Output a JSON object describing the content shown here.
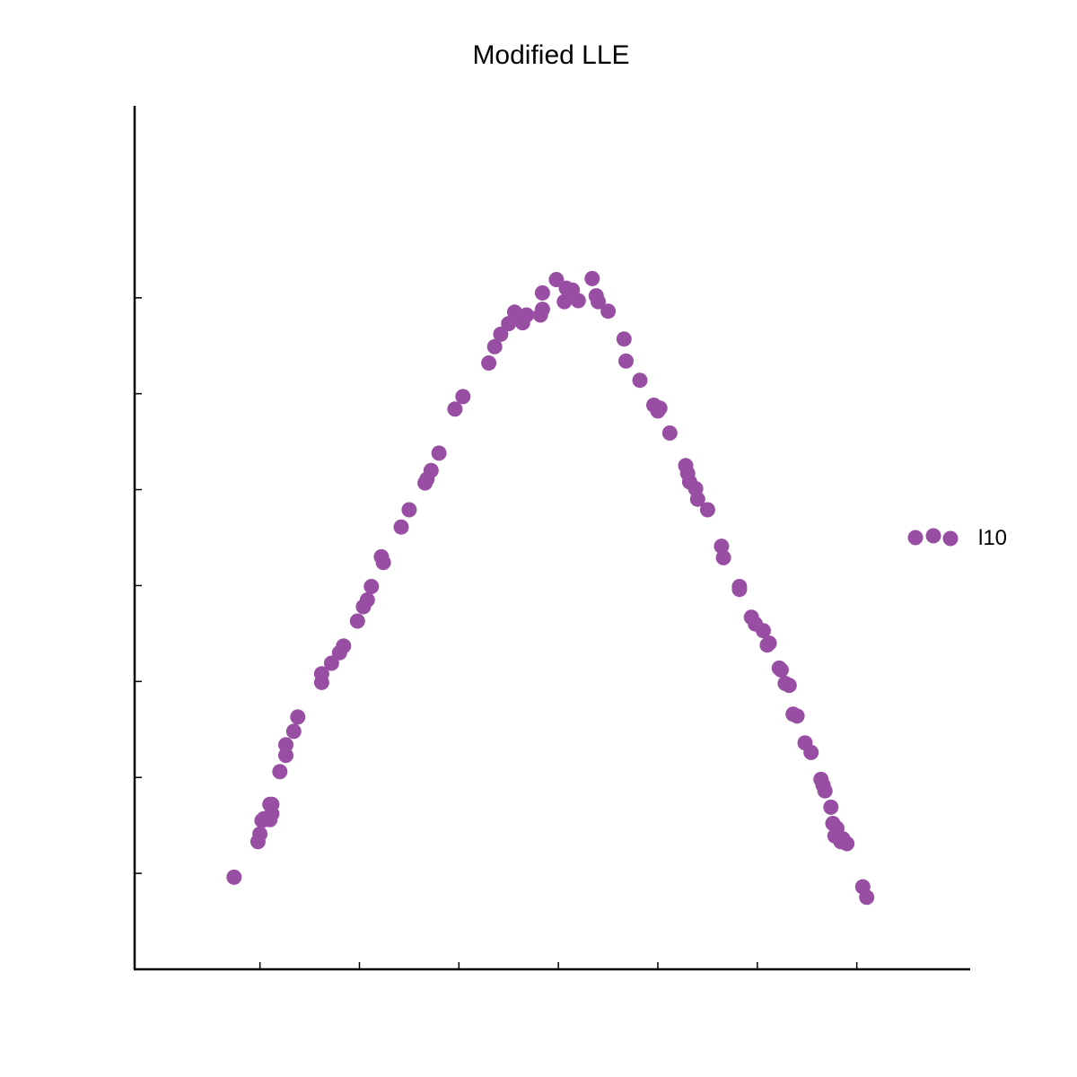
{
  "chart_data": {
    "type": "scatter",
    "title": "Modified LLE",
    "xlabel": "",
    "ylabel": "",
    "xlim": [
      -0.63,
      3.57
    ],
    "ylim": [
      -1.0,
      8.0
    ],
    "xticks": [
      0,
      0.5,
      1.0,
      1.5,
      2.0,
      2.5,
      3.0
    ],
    "yticks": [
      0,
      1,
      2,
      3,
      4,
      5,
      6
    ],
    "tick_labels_visible": false,
    "grid": false,
    "legend_position": "right",
    "series": [
      {
        "name": "l10",
        "color": "#984ea3",
        "points": [
          [
            -0.13,
            -0.04
          ],
          [
            -0.01,
            0.33
          ],
          [
            0.0,
            0.41
          ],
          [
            0.01,
            0.55
          ],
          [
            0.02,
            0.57
          ],
          [
            0.04,
            0.58
          ],
          [
            0.05,
            0.56
          ],
          [
            0.06,
            0.62
          ],
          [
            0.05,
            0.72
          ],
          [
            0.06,
            0.72
          ],
          [
            0.1,
            1.06
          ],
          [
            0.13,
            1.23
          ],
          [
            0.13,
            1.34
          ],
          [
            0.17,
            1.48
          ],
          [
            0.19,
            1.63
          ],
          [
            0.31,
            1.99
          ],
          [
            0.31,
            2.08
          ],
          [
            0.36,
            2.19
          ],
          [
            0.4,
            2.3
          ],
          [
            0.42,
            2.37
          ],
          [
            0.49,
            2.63
          ],
          [
            0.52,
            2.78
          ],
          [
            0.54,
            2.85
          ],
          [
            0.56,
            2.99
          ],
          [
            0.61,
            3.3
          ],
          [
            0.62,
            3.24
          ],
          [
            0.71,
            3.61
          ],
          [
            0.75,
            3.79
          ],
          [
            0.83,
            4.07
          ],
          [
            0.84,
            4.11
          ],
          [
            0.86,
            4.2
          ],
          [
            0.9,
            4.38
          ],
          [
            0.98,
            4.84
          ],
          [
            1.02,
            4.97
          ],
          [
            1.15,
            5.32
          ],
          [
            1.18,
            5.49
          ],
          [
            1.21,
            5.62
          ],
          [
            1.25,
            5.73
          ],
          [
            1.28,
            5.85
          ],
          [
            1.32,
            5.74
          ],
          [
            1.34,
            5.82
          ],
          [
            1.41,
            5.82
          ],
          [
            1.42,
            5.88
          ],
          [
            1.42,
            6.05
          ],
          [
            1.49,
            6.19
          ],
          [
            1.53,
            5.96
          ],
          [
            1.54,
            6.1
          ],
          [
            1.57,
            6.08
          ],
          [
            1.6,
            5.97
          ],
          [
            1.67,
            6.2
          ],
          [
            1.69,
            6.02
          ],
          [
            1.7,
            5.96
          ],
          [
            1.75,
            5.86
          ],
          [
            1.83,
            5.57
          ],
          [
            1.84,
            5.34
          ],
          [
            1.91,
            5.14
          ],
          [
            1.98,
            4.88
          ],
          [
            2.0,
            4.82
          ],
          [
            2.01,
            4.85
          ],
          [
            2.06,
            4.59
          ],
          [
            2.14,
            4.25
          ],
          [
            2.15,
            4.17
          ],
          [
            2.16,
            4.08
          ],
          [
            2.19,
            4.01
          ],
          [
            2.2,
            3.9
          ],
          [
            2.25,
            3.79
          ],
          [
            2.32,
            3.41
          ],
          [
            2.33,
            3.29
          ],
          [
            2.41,
            2.96
          ],
          [
            2.41,
            2.99
          ],
          [
            2.47,
            2.67
          ],
          [
            2.49,
            2.6
          ],
          [
            2.53,
            2.53
          ],
          [
            2.55,
            2.38
          ],
          [
            2.56,
            2.4
          ],
          [
            2.61,
            2.14
          ],
          [
            2.62,
            2.12
          ],
          [
            2.64,
            1.98
          ],
          [
            2.66,
            1.96
          ],
          [
            2.68,
            1.66
          ],
          [
            2.7,
            1.64
          ],
          [
            2.74,
            1.36
          ],
          [
            2.77,
            1.26
          ],
          [
            2.82,
            0.98
          ],
          [
            2.83,
            0.92
          ],
          [
            2.84,
            0.86
          ],
          [
            2.87,
            0.69
          ],
          [
            2.88,
            0.52
          ],
          [
            2.89,
            0.39
          ],
          [
            2.9,
            0.47
          ],
          [
            2.92,
            0.33
          ],
          [
            2.93,
            0.36
          ],
          [
            2.95,
            0.31
          ],
          [
            3.03,
            -0.14
          ],
          [
            3.05,
            -0.25
          ]
        ]
      }
    ]
  }
}
